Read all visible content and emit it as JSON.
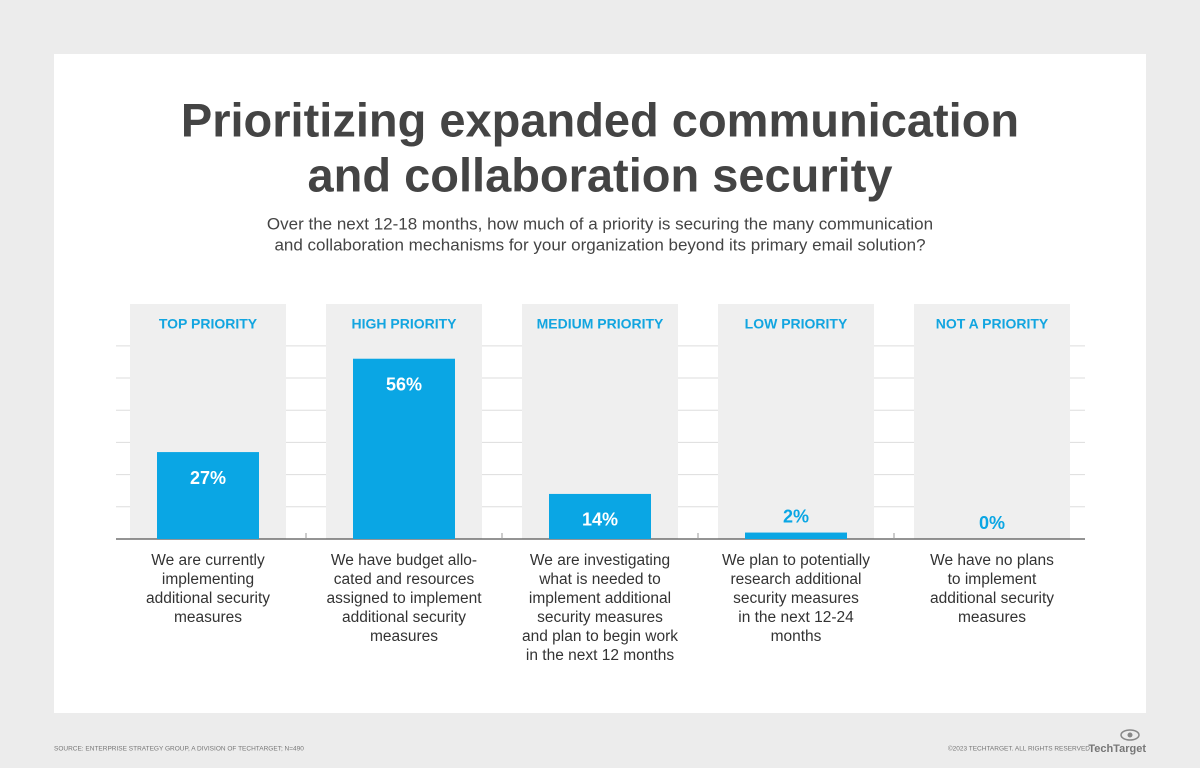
{
  "chart_data": {
    "type": "bar",
    "title": [
      "Prioritizing expanded communication",
      "and collaboration security"
    ],
    "subtitle": [
      "Over the next 12-18 months, how much of a priority is securing the many communication",
      "and collaboration mechanisms for your organization beyond its primary email solution?"
    ],
    "categories": [
      "TOP PRIORITY",
      "HIGH PRIORITY",
      "MEDIUM PRIORITY",
      "LOW PRIORITY",
      "NOT A PRIORITY"
    ],
    "descriptions": [
      [
        "We are currently",
        "implementing",
        "additional security",
        "measures"
      ],
      [
        "We have budget allo-",
        "cated and resources",
        "assigned to implement",
        "additional security",
        "measures"
      ],
      [
        "We are investigating",
        "what is needed to",
        "implement additional",
        "security measures",
        "and plan to begin work",
        "in the next 12 months"
      ],
      [
        "We plan to potentially",
        "research additional",
        "security measures",
        "in the next 12-24",
        "months"
      ],
      [
        "We have no plans",
        "to implement",
        "additional security",
        "measures"
      ]
    ],
    "values": [
      27,
      56,
      14,
      2,
      0
    ],
    "value_labels": [
      "27%",
      "56%",
      "14%",
      "2%",
      "0%"
    ],
    "color": "#0aa6e4",
    "ylim": [
      0,
      73
    ],
    "yticks": [
      0,
      10,
      20,
      30,
      40,
      50,
      60
    ],
    "grid": true,
    "source": "SOURCE: ENTERPRISE STRATEGY GROUP, A DIVISION OF TECHTARGET; N=490",
    "copyright": "©2023 TECHTARGET. ALL RIGHTS RESERVED",
    "logo": "TechTarget"
  }
}
